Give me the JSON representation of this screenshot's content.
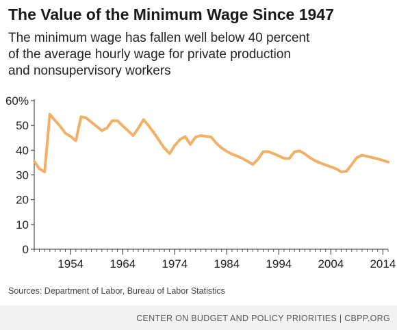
{
  "header": {
    "title": "The Value of the Minimum Wage Since 1947",
    "subtitle_lines": [
      "The minimum wage has fallen well below 40 percent",
      "of the average hourly wage for private production",
      "and nonsupervisory workers"
    ]
  },
  "source_note": "Sources: Department of Labor, Bureau of Labor Statistics",
  "footer": {
    "text": "CENTER ON BUDGET AND POLICY PRIORITIES | CBPP.ORG"
  },
  "colors": {
    "line": "#F2B066",
    "axis": "#333333",
    "footer_bg": "#f2f2f2"
  },
  "chart_data": {
    "type": "line",
    "title": "",
    "xlabel": "",
    "ylabel": "",
    "xlim": [
      1947,
      2015
    ],
    "ylim": [
      0,
      60
    ],
    "y_ticks": [
      0,
      10,
      20,
      30,
      40,
      50,
      60
    ],
    "y_tick_labels": [
      "0",
      "10",
      "20",
      "30",
      "40",
      "50",
      "60%"
    ],
    "x_ticks": [
      1954,
      1964,
      1974,
      1984,
      1994,
      2004,
      2014
    ],
    "x_tick_labels": [
      "1954",
      "1964",
      "1974",
      "1984",
      "1994",
      "2004",
      "2014"
    ],
    "grid": false,
    "series": [
      {
        "x": [
          1947,
          1948,
          1949,
          1950,
          1951,
          1952,
          1953,
          1954,
          1955,
          1956,
          1957,
          1958,
          1959,
          1960,
          1961,
          1962,
          1963,
          1964,
          1965,
          1966,
          1967,
          1968,
          1969,
          1970,
          1971,
          1972,
          1973,
          1974,
          1975,
          1976,
          1977,
          1978,
          1979,
          1980,
          1981,
          1982,
          1983,
          1984,
          1985,
          1986,
          1987,
          1988,
          1989,
          1990,
          1991,
          1992,
          1993,
          1994,
          1995,
          1996,
          1997,
          1998,
          1999,
          2000,
          2001,
          2002,
          2003,
          2004,
          2005,
          2006,
          2007,
          2008,
          2009,
          2010,
          2011,
          2012,
          2013,
          2014,
          2015
        ],
        "y": [
          35.5,
          32.5,
          31.2,
          54.5,
          52.0,
          49.6,
          46.8,
          45.6,
          43.8,
          53.5,
          53.0,
          51.3,
          49.6,
          47.9,
          49.0,
          51.9,
          51.9,
          49.8,
          47.9,
          45.9,
          48.9,
          52.3,
          49.8,
          47.0,
          43.9,
          40.8,
          38.6,
          41.9,
          44.3,
          45.5,
          42.3,
          45.3,
          45.9,
          45.6,
          45.3,
          42.8,
          40.9,
          39.5,
          38.4,
          37.6,
          36.7,
          35.5,
          34.2,
          36.3,
          39.4,
          39.4,
          38.6,
          37.7,
          36.7,
          36.6,
          39.3,
          39.7,
          38.5,
          36.9,
          35.7,
          34.8,
          34.0,
          33.3,
          32.5,
          31.2,
          31.5,
          34.2,
          37.0,
          38.0,
          37.5,
          37.0,
          36.5,
          35.9,
          35.2
        ]
      }
    ]
  }
}
